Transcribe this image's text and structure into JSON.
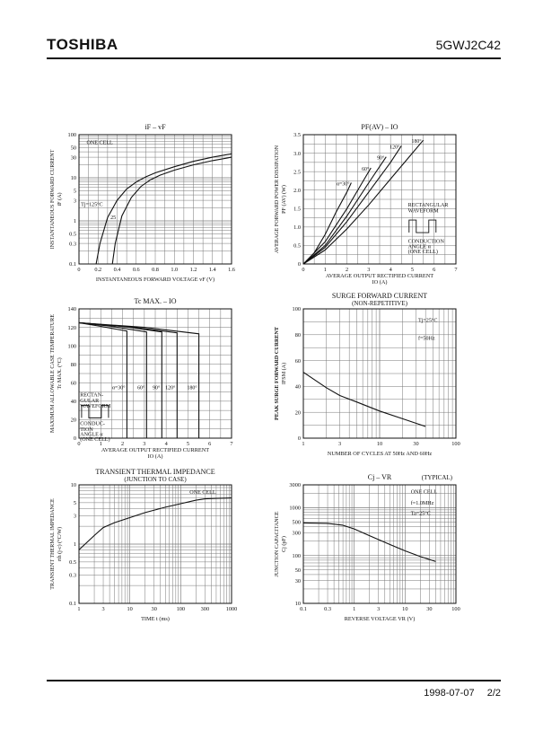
{
  "header": {
    "brand": "TOSHIBA",
    "part_number": "5GWJ2C42"
  },
  "footer": {
    "date": "1998-07-07",
    "page": "2/2"
  },
  "chart_data": [
    {
      "id": "if-vf",
      "type": "line",
      "title": "iF – vF",
      "xlabel": "INSTANTANEOUS FORWARD VOLTAGE  vF   (V)",
      "ylabel": "INSTANTANEOUS FORWARD CURRENT",
      "yunit": "iF   (A)",
      "xlim": [
        0,
        1.6
      ],
      "ylim": [
        0.1,
        100
      ],
      "yscale": "log",
      "xticks": [
        0,
        0.2,
        0.4,
        0.6,
        0.8,
        1.0,
        1.2,
        1.4,
        1.6
      ],
      "xtick_labels": [
        "0",
        "0.2",
        "0.4",
        "0.6",
        "0.8",
        "1.0",
        "1.2",
        "1.4",
        "1.6"
      ],
      "yticks": [
        0.1,
        0.3,
        0.5,
        1,
        3,
        5,
        10,
        30,
        50,
        100
      ],
      "ytick_labels": [
        "0.1",
        "0.3",
        "0.5",
        "1",
        "3",
        "5",
        "10",
        "30",
        "50",
        "100"
      ],
      "grid": true,
      "annotations": [
        {
          "text": "ONE CELL",
          "x": 0.08,
          "y": 60
        },
        {
          "text": "Tj=125°C",
          "x": 0.02,
          "y": 2.2
        },
        {
          "text": "25",
          "x": 0.33,
          "y": 1.1
        }
      ],
      "series": [
        {
          "x": [
            0.18,
            0.22,
            0.3,
            0.4,
            0.5,
            0.6,
            0.7,
            0.8,
            1.0,
            1.2,
            1.4,
            1.6
          ],
          "y": [
            0.1,
            0.3,
            1.2,
            3,
            5.5,
            8,
            10.5,
            13,
            18,
            24,
            30,
            36
          ]
        },
        {
          "x": [
            0.35,
            0.38,
            0.45,
            0.55,
            0.65,
            0.75,
            0.85,
            1.0,
            1.2,
            1.4,
            1.6
          ],
          "y": [
            0.1,
            0.3,
            1.3,
            3.5,
            6.3,
            9,
            11.5,
            15,
            20,
            25,
            30
          ]
        }
      ]
    },
    {
      "id": "pf-io",
      "type": "line",
      "title": "PF(AV) – IO",
      "xlabel": "AVERAGE OUTPUT RECTIFIED CURRENT",
      "xunit": "IO   (A)",
      "ylabel": "AVERAGE FORWARD POWER DISSIPATION",
      "yunit": "PF (AV)   (W)",
      "xlim": [
        0,
        7
      ],
      "ylim": [
        0,
        3.5
      ],
      "xticks": [
        0,
        1,
        2,
        3,
        4,
        5,
        6,
        7
      ],
      "xtick_labels": [
        "0",
        "1",
        "2",
        "3",
        "4",
        "5",
        "6",
        "7"
      ],
      "yticks": [
        0,
        0.5,
        1.0,
        1.5,
        2.0,
        2.5,
        3.0,
        3.5
      ],
      "ytick_labels": [
        "0",
        "0.5",
        "1.0",
        "1.5",
        "2.0",
        "2.5",
        "3.0",
        "3.5"
      ],
      "grid": true,
      "annotations": [
        {
          "text": "RECTANGULAR",
          "x": 4.8,
          "y": 1.55
        },
        {
          "text": "WAVEFORM",
          "x": 4.8,
          "y": 1.4
        },
        {
          "text": "CONDUCTION",
          "x": 4.8,
          "y": 0.57
        },
        {
          "text": "ANGLE α",
          "x": 4.8,
          "y": 0.43
        },
        {
          "text": "(ONE CELL)",
          "x": 4.8,
          "y": 0.29
        }
      ],
      "series": [
        {
          "name": "α=30°",
          "x": [
            0,
            0.5,
            1.0,
            1.5,
            2.0,
            2.2
          ],
          "y": [
            0,
            0.3,
            0.8,
            1.4,
            1.95,
            2.2
          ]
        },
        {
          "name": "60°",
          "x": [
            0,
            1,
            2,
            2.6,
            3.1
          ],
          "y": [
            0,
            0.6,
            1.5,
            2.1,
            2.6
          ]
        },
        {
          "name": "90°",
          "x": [
            0,
            1,
            2,
            3,
            3.8
          ],
          "y": [
            0,
            0.5,
            1.3,
            2.2,
            2.9
          ]
        },
        {
          "name": "120°",
          "x": [
            0,
            1,
            2,
            3,
            4,
            4.5
          ],
          "y": [
            0,
            0.45,
            1.15,
            1.95,
            2.75,
            3.2
          ]
        },
        {
          "name": "180°",
          "x": [
            0,
            1,
            2,
            3,
            4,
            5,
            5.5
          ],
          "y": [
            0,
            0.38,
            0.95,
            1.6,
            2.3,
            3.0,
            3.35
          ]
        }
      ]
    },
    {
      "id": "tc-io",
      "type": "line",
      "title": "Tc MAX. – IO",
      "xlabel": "AVERAGE OUTPUT RECTIFIED CURRENT",
      "xunit": "IO   (A)",
      "ylabel": "MAXIMUM ALLOWABLE CASE TEMPERATURE",
      "yunit": "Tc MAX.   (°C)",
      "xlim": [
        0,
        7
      ],
      "ylim": [
        0,
        140
      ],
      "xticks": [
        0,
        1,
        2,
        3,
        4,
        5,
        6,
        7
      ],
      "xtick_labels": [
        "0",
        "1",
        "2",
        "3",
        "4",
        "5",
        "6",
        "7"
      ],
      "yticks": [
        0,
        20,
        40,
        60,
        80,
        100,
        120,
        140
      ],
      "ytick_labels": [
        "0",
        "20",
        "40",
        "60",
        "80",
        "100",
        "120",
        "140"
      ],
      "grid": true,
      "annotations": [
        {
          "text": "RECTAN-",
          "x": 0.05,
          "y": 45
        },
        {
          "text": "GULAR",
          "x": 0.05,
          "y": 39
        },
        {
          "text": "WAVEFORM",
          "x": 0.05,
          "y": 33
        },
        {
          "text": "CONDUC-",
          "x": 0.05,
          "y": 14
        },
        {
          "text": "TION",
          "x": 0.05,
          "y": 8
        },
        {
          "text": "ANGLE α",
          "x": 0.05,
          "y": 2.5
        },
        {
          "text": "(ONE CELL)",
          "x": 0.05,
          "y": -3
        }
      ],
      "series": [
        {
          "name": "α=30°",
          "x": [
            0,
            1.0,
            2.2,
            2.2
          ],
          "y": [
            125,
            121,
            116,
            0
          ]
        },
        {
          "name": "60°",
          "x": [
            0,
            1.5,
            3.1,
            3.1
          ],
          "y": [
            125,
            121,
            115,
            0
          ]
        },
        {
          "name": "90°",
          "x": [
            0,
            2.0,
            3.8,
            3.8
          ],
          "y": [
            125,
            121,
            115,
            0
          ]
        },
        {
          "name": "120°",
          "x": [
            0,
            2.5,
            4.5,
            4.5
          ],
          "y": [
            125,
            120,
            114,
            0
          ]
        },
        {
          "name": "180°",
          "x": [
            0,
            3.0,
            5.5,
            5.5
          ],
          "y": [
            125,
            120,
            113,
            0
          ]
        }
      ]
    },
    {
      "id": "surge",
      "type": "line",
      "title": "SURGE FORWARD CURRENT",
      "subtitle": "(NON-REPETITIVE)",
      "xlabel": "NUMBER OF CYCLES AT 50Hz AND 60Hz",
      "ylabel": "PEAK SURGE FORWARD CURRENT",
      "yunit": "IFSM   (A)",
      "xlim": [
        1,
        100
      ],
      "xscale": "log",
      "ylim": [
        0,
        100
      ],
      "xticks": [
        1,
        3,
        10,
        30,
        100
      ],
      "xtick_labels": [
        "1",
        "3",
        "10",
        "30",
        "100"
      ],
      "yticks": [
        0,
        20,
        40,
        60,
        80,
        100
      ],
      "ytick_labels": [
        "0",
        "20",
        "40",
        "60",
        "80",
        "100"
      ],
      "grid": true,
      "annotations": [
        {
          "text": "Tj=25°C",
          "x": 32,
          "y": 90
        },
        {
          "text": "f=50Hz",
          "x": 32,
          "y": 76
        }
      ],
      "series": [
        {
          "x": [
            1,
            2,
            3,
            5,
            10,
            20,
            40
          ],
          "y": [
            51,
            39,
            33,
            28,
            21,
            15,
            9
          ]
        }
      ]
    },
    {
      "id": "transient",
      "type": "line",
      "title": "TRANSIENT THERMAL IMPEDANCE",
      "subtitle": "(JUNCTION TO CASE)",
      "xlabel": "TIME   t   (ms)",
      "ylabel": "TRANSIENT THERMAL IMPEDANCE",
      "yunit": "rth (j-c)  (°C/W)",
      "xlim": [
        1,
        1000
      ],
      "xscale": "log",
      "ylim": [
        0.1,
        10
      ],
      "yscale": "log",
      "xticks": [
        1,
        3,
        10,
        30,
        100,
        300,
        1000
      ],
      "xtick_labels": [
        "1",
        "3",
        "10",
        "30",
        "100",
        "300",
        "1000"
      ],
      "yticks": [
        0.1,
        0.3,
        0.5,
        1,
        3,
        5,
        10
      ],
      "ytick_labels": [
        "0.1",
        "0.3",
        "0.5",
        "1",
        "3",
        "5",
        "10"
      ],
      "grid": true,
      "annotations": [
        {
          "text": "ONE CELL",
          "x": 150,
          "y": 7
        }
      ],
      "series": [
        {
          "x": [
            1,
            2,
            3,
            5,
            10,
            20,
            50,
            100,
            200,
            300,
            500,
            1000
          ],
          "y": [
            0.8,
            1.4,
            1.9,
            2.3,
            2.8,
            3.4,
            4.2,
            4.8,
            5.5,
            5.8,
            5.9,
            6.0
          ]
        }
      ]
    },
    {
      "id": "cj-vr",
      "type": "line",
      "title": "Cj – VR",
      "subtitle": "(TYPICAL)",
      "xlabel": "REVERSE VOLTAGE  VR   (V)",
      "ylabel": "JUNCTION CAPACITANCE",
      "yunit": "Cj   (pF)",
      "xlim": [
        0.1,
        100
      ],
      "xscale": "log",
      "ylim": [
        10,
        3000
      ],
      "yscale": "log",
      "xticks": [
        0.1,
        0.3,
        1,
        3,
        10,
        30,
        100
      ],
      "xtick_labels": [
        "0.1",
        "0.3",
        "1",
        "3",
        "10",
        "30",
        "100"
      ],
      "yticks": [
        10,
        30,
        50,
        100,
        300,
        500,
        1000,
        3000
      ],
      "ytick_labels": [
        "10",
        "30",
        "50",
        "100",
        "300",
        "500",
        "1000",
        "3000"
      ],
      "grid": true,
      "annotations": [
        {
          "text": "ONE CELL",
          "x": 13,
          "y": 2000
        },
        {
          "text": "f=1.0MHz",
          "x": 13,
          "y": 1150
        },
        {
          "text": "Ta=25°C",
          "x": 13,
          "y": 700
        }
      ],
      "series": [
        {
          "x": [
            0.1,
            0.3,
            0.6,
            1,
            2,
            5,
            10,
            20,
            40
          ],
          "y": [
            480,
            470,
            430,
            360,
            260,
            170,
            125,
            95,
            75
          ]
        }
      ]
    }
  ]
}
